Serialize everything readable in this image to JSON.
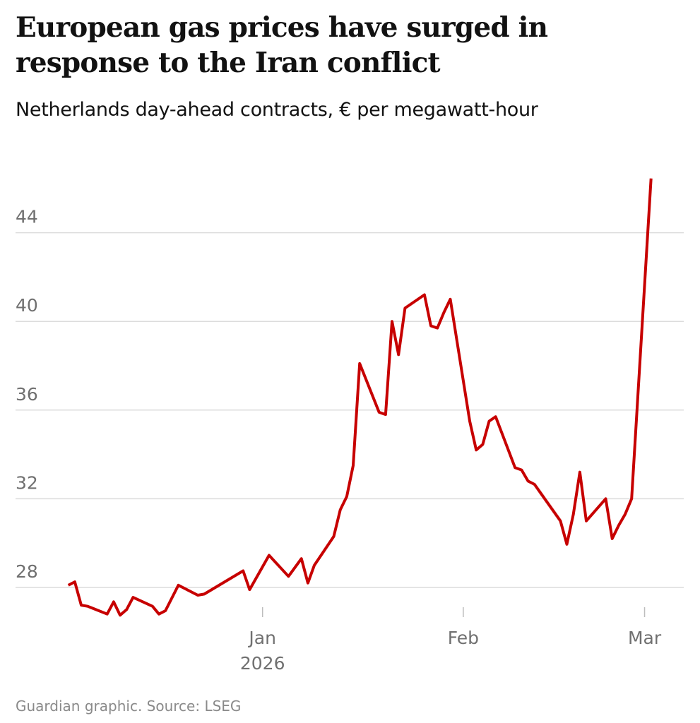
{
  "title": "European gas prices have surged in response to the Iran conflict",
  "subtitle": "Netherlands day-ahead contracts, € per megawatt-hour",
  "source": "Guardian graphic. Source: LSEG",
  "chart_data": {
    "type": "line",
    "title": "European gas prices have surged in response to the Iran conflict",
    "subtitle": "Netherlands day-ahead contracts, € per megawatt-hour",
    "ylabel": "",
    "xlabel": "",
    "ylim": [
      26.5,
      46.5
    ],
    "xlim": [
      "2025-12-02",
      "2026-03-02"
    ],
    "grid": true,
    "line_color": "#c70000",
    "y_ticks": [
      28,
      32,
      36,
      40,
      44
    ],
    "x_ticks": [
      {
        "date": "2026-01-01",
        "label": "Jan",
        "sublabel": "2026"
      },
      {
        "date": "2026-02-01",
        "label": "Feb",
        "sublabel": ""
      },
      {
        "date": "2026-03-01",
        "label": "Mar",
        "sublabel": ""
      }
    ],
    "series": [
      {
        "points": [
          [
            "2025-12-02",
            28.1
          ],
          [
            "2025-12-03",
            28.25
          ],
          [
            "2025-12-04",
            27.2
          ],
          [
            "2025-12-05",
            27.15
          ],
          [
            "2025-12-08",
            26.8
          ],
          [
            "2025-12-09",
            27.35
          ],
          [
            "2025-12-10",
            26.75
          ],
          [
            "2025-12-11",
            27.0
          ],
          [
            "2025-12-12",
            27.55
          ],
          [
            "2025-12-15",
            27.15
          ],
          [
            "2025-12-16",
            26.8
          ],
          [
            "2025-12-17",
            26.95
          ],
          [
            "2025-12-19",
            28.1
          ],
          [
            "2025-12-22",
            27.65
          ],
          [
            "2025-12-23",
            27.7
          ],
          [
            "2025-12-29",
            28.75
          ],
          [
            "2025-12-30",
            27.9
          ],
          [
            "2026-01-02",
            29.45
          ],
          [
            "2026-01-05",
            28.5
          ],
          [
            "2026-01-07",
            29.3
          ],
          [
            "2026-01-08",
            28.2
          ],
          [
            "2026-01-09",
            29.0
          ],
          [
            "2026-01-12",
            30.3
          ],
          [
            "2026-01-13",
            31.5
          ],
          [
            "2026-01-14",
            32.1
          ],
          [
            "2026-01-15",
            33.5
          ],
          [
            "2026-01-16",
            38.1
          ],
          [
            "2026-01-19",
            35.9
          ],
          [
            "2026-01-20",
            35.8
          ],
          [
            "2026-01-21",
            40.0
          ],
          [
            "2026-01-22",
            38.5
          ],
          [
            "2026-01-23",
            40.6
          ],
          [
            "2026-01-26",
            41.2
          ],
          [
            "2026-01-27",
            39.8
          ],
          [
            "2026-01-28",
            39.7
          ],
          [
            "2026-01-29",
            40.4
          ],
          [
            "2026-01-30",
            41.0
          ],
          [
            "2026-02-02",
            35.5
          ],
          [
            "2026-02-03",
            34.2
          ],
          [
            "2026-02-04",
            34.45
          ],
          [
            "2026-02-05",
            35.5
          ],
          [
            "2026-02-06",
            35.7
          ],
          [
            "2026-02-09",
            33.4
          ],
          [
            "2026-02-10",
            33.3
          ],
          [
            "2026-02-11",
            32.8
          ],
          [
            "2026-02-12",
            32.65
          ],
          [
            "2026-02-16",
            31.0
          ],
          [
            "2026-02-17",
            29.95
          ],
          [
            "2026-02-18",
            31.3
          ],
          [
            "2026-02-19",
            33.2
          ],
          [
            "2026-02-20",
            31.0
          ],
          [
            "2026-02-23",
            32.0
          ],
          [
            "2026-02-24",
            30.2
          ],
          [
            "2026-02-25",
            30.8
          ],
          [
            "2026-02-26",
            31.3
          ],
          [
            "2026-02-27",
            32.0
          ],
          [
            "2026-03-02",
            46.45
          ]
        ]
      }
    ]
  }
}
